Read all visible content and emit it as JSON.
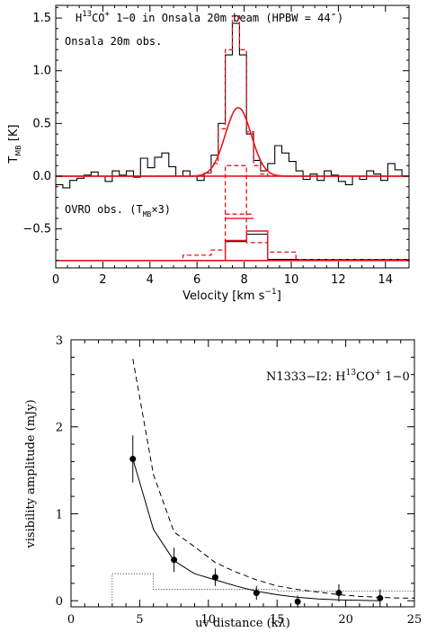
{
  "chart_data": [
    {
      "type": "line",
      "title": "H13CO+ 1-0 in Onsala 20m beam (HPBW = 44\")",
      "title_parts": {
        "a": "H",
        "sup1": "13",
        "b": "CO",
        "sup2": "+",
        "c": " 1−0 in Onsala 20m beam (HPBW = 44″)"
      },
      "xlabel": "Velocity [km s",
      "xlabel_sup": "−1",
      "xlabel_end": "]",
      "ylabel": "T",
      "ylabel_sub": "MB",
      "ylabel_end": " [K]",
      "xlim": [
        0,
        15
      ],
      "ylim": [
        -0.87,
        1.62
      ],
      "xticks": [
        0,
        2,
        4,
        6,
        8,
        10,
        12,
        14
      ],
      "yticks": [
        -0.5,
        0.0,
        0.5,
        1.0,
        1.5
      ],
      "ytick_labels": [
        "−0.5",
        "0.0",
        "0.5",
        "1.0",
        "1.5"
      ],
      "annotations": {
        "onsala": "Onsala 20m obs.",
        "ovro_a": "OVRO obs. (T",
        "ovro_sub": "MB",
        "ovro_b": "×3)"
      },
      "colors": {
        "observed": "#000000",
        "model": "#e8141c"
      },
      "zero_levels": [
        0.0,
        -0.8
      ],
      "series": [
        {
          "name": "",
          "style": "black-step",
          "x": [
            0.0,
            0.3,
            0.6,
            0.9,
            1.2,
            1.5,
            1.8,
            2.1,
            2.4,
            2.7,
            3.0,
            3.3,
            3.6,
            3.9,
            4.2,
            4.5,
            4.8,
            5.1,
            5.4,
            5.7,
            6.0,
            6.3,
            6.6,
            6.9,
            7.2,
            7.5,
            7.8,
            8.1,
            8.4,
            8.7,
            9.0,
            9.3,
            9.6,
            9.9,
            10.2,
            10.5,
            10.8,
            11.1,
            11.4,
            11.7,
            12.0,
            12.3,
            12.6,
            12.9,
            13.2,
            13.5,
            13.8,
            14.1,
            14.4,
            14.7
          ],
          "y": [
            -0.08,
            -0.11,
            -0.04,
            -0.02,
            0.01,
            0.04,
            0.0,
            -0.05,
            0.05,
            0.01,
            0.05,
            -0.01,
            0.17,
            0.08,
            0.18,
            0.22,
            0.09,
            0.0,
            0.05,
            0.0,
            -0.04,
            0.03,
            0.2,
            0.5,
            1.15,
            1.45,
            1.15,
            0.4,
            0.15,
            0.05,
            0.12,
            0.29,
            0.22,
            0.14,
            0.05,
            -0.03,
            0.02,
            -0.04,
            0.05,
            0.01,
            -0.05,
            -0.08,
            0.0,
            -0.03,
            0.05,
            0.02,
            -0.04,
            0.12,
            0.06,
            0.0
          ]
        },
        {
          "name": "",
          "style": "red-dashed-step",
          "x": [
            5.7,
            6.0,
            6.3,
            6.6,
            6.9,
            7.2,
            7.5,
            7.8,
            8.1,
            8.4,
            8.7,
            9.0,
            9.3,
            9.6
          ],
          "y": [
            0.0,
            0.0,
            0.03,
            0.12,
            0.45,
            1.2,
            1.52,
            1.2,
            0.42,
            0.1,
            0.02,
            0.0,
            0.0,
            0.0
          ]
        },
        {
          "name": "",
          "style": "red-smooth",
          "center": 7.75,
          "amplitude": 0.65,
          "sigma": 0.55,
          "x_range": [
            0,
            15
          ],
          "offset": 0.0
        },
        {
          "name": "",
          "style": "black-step",
          "x": [
            0.0,
            6.6,
            7.2,
            8.1,
            9.0,
            15.0
          ],
          "y": [
            -0.8,
            -0.8,
            -0.62,
            -0.55,
            -0.79,
            -0.8
          ]
        },
        {
          "name": "",
          "style": "red-dashed-step",
          "x": [
            0.0,
            5.4,
            6.6,
            7.2,
            8.1,
            9.0,
            10.2,
            15.0
          ],
          "y": [
            -0.8,
            -0.75,
            -0.7,
            0.1,
            -0.63,
            -0.72,
            -0.79,
            -0.8
          ]
        },
        {
          "name": "",
          "style": "red-dashed-step",
          "x": [
            7.2,
            8.1
          ],
          "y": [
            -0.36,
            -0.36
          ]
        },
        {
          "name": "",
          "style": "red-solid-step",
          "x": [
            0.0,
            6.6,
            7.2,
            8.1,
            9.0,
            15.0
          ],
          "y": [
            -0.8,
            -0.8,
            -0.61,
            -0.52,
            -0.8,
            -0.8
          ]
        },
        {
          "name": "",
          "style": "red-solid-step",
          "x": [
            7.2,
            8.1
          ],
          "y": [
            -0.4,
            -0.4
          ]
        }
      ]
    },
    {
      "type": "scatter",
      "title": "N1333-I2: H13CO+ 1-0",
      "title_parts": {
        "a": "N1333−I2: H",
        "sup1": "13",
        "b": "CO",
        "sup2": "+",
        "c": " 1−0"
      },
      "xlabel": "uv distance (kλ)",
      "ylabel": "visibility amplitude (mJy)",
      "xlim": [
        0,
        25
      ],
      "ylim": [
        -0.07,
        3.0
      ],
      "xticks": [
        0,
        5,
        10,
        15,
        20,
        25
      ],
      "yticks": [
        0,
        1,
        2,
        3
      ],
      "points": {
        "x": [
          4.5,
          7.5,
          10.5,
          13.5,
          16.5,
          19.5,
          22.5
        ],
        "y": [
          1.63,
          0.47,
          0.27,
          0.09,
          -0.01,
          0.09,
          0.03
        ],
        "err": [
          0.27,
          0.14,
          0.1,
          0.08,
          0.07,
          0.1,
          0.1
        ]
      },
      "solid_model": {
        "x": [
          4.5,
          6.0,
          7.5,
          9.0,
          10.5,
          12.0,
          13.5,
          15.0,
          16.5,
          18.0,
          19.5,
          21.0,
          22.5
        ],
        "y": [
          1.63,
          0.82,
          0.46,
          0.31,
          0.24,
          0.17,
          0.11,
          0.07,
          0.04,
          0.02,
          0.01,
          0.005,
          0.0
        ]
      },
      "dashed_model": {
        "x": [
          4.5,
          6.0,
          7.5,
          9.0,
          10.5,
          12.0,
          13.5,
          15.0,
          16.5,
          18.0,
          19.5,
          21.0,
          22.5,
          24.0,
          25.0
        ],
        "y": [
          2.78,
          1.45,
          0.79,
          0.62,
          0.44,
          0.33,
          0.24,
          0.17,
          0.13,
          0.1,
          0.07,
          0.05,
          0.04,
          0.03,
          0.03
        ]
      },
      "dotted_step": {
        "x": [
          3.0,
          3.0,
          6.0,
          6.0,
          15.0,
          15.0,
          25.0
        ],
        "y": [
          0.0,
          0.31,
          0.31,
          0.13,
          0.13,
          0.11,
          0.11
        ]
      }
    }
  ]
}
